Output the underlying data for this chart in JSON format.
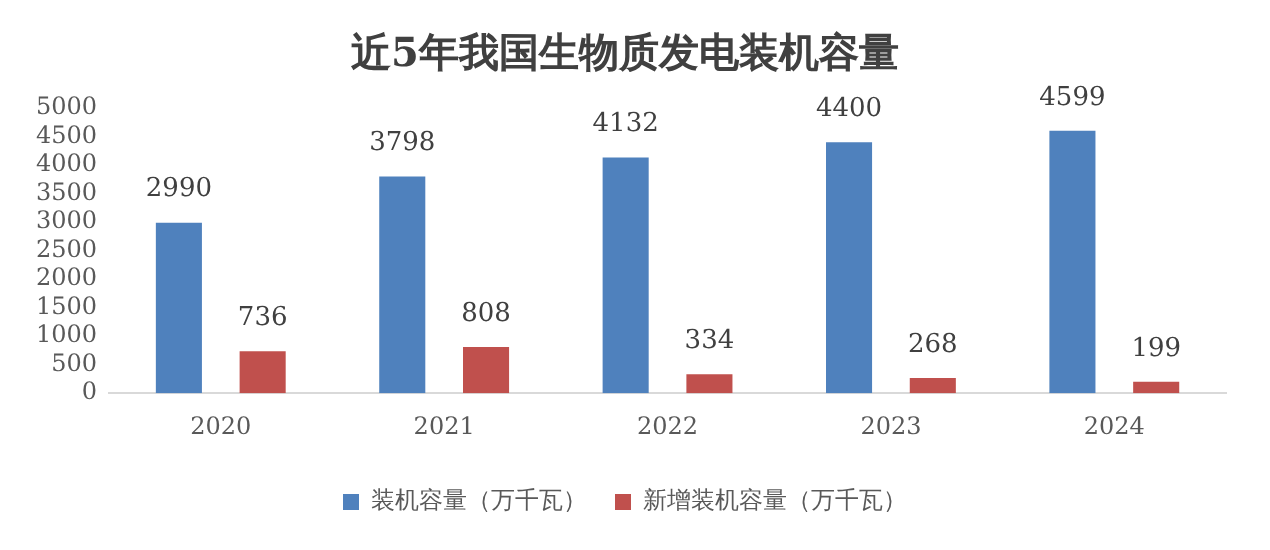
{
  "chart_data": {
    "type": "bar",
    "title": "近5年我国生物质发电装机容量",
    "categories": [
      "2020",
      "2021",
      "2022",
      "2023",
      "2024"
    ],
    "series": [
      {
        "name": "装机容量（万千瓦）",
        "color": "#4f81bd",
        "values": [
          2990,
          3798,
          4132,
          4400,
          4599
        ]
      },
      {
        "name": "新增装机容量（万千瓦）",
        "color": "#c0504d",
        "values": [
          736,
          808,
          334,
          268,
          199
        ]
      }
    ],
    "ylim": [
      0,
      5000
    ],
    "yticks": [
      0,
      500,
      1000,
      1500,
      2000,
      2500,
      3000,
      3500,
      4000,
      4500,
      5000
    ],
    "grid": false,
    "legend": "bottom",
    "data_labels": true
  }
}
